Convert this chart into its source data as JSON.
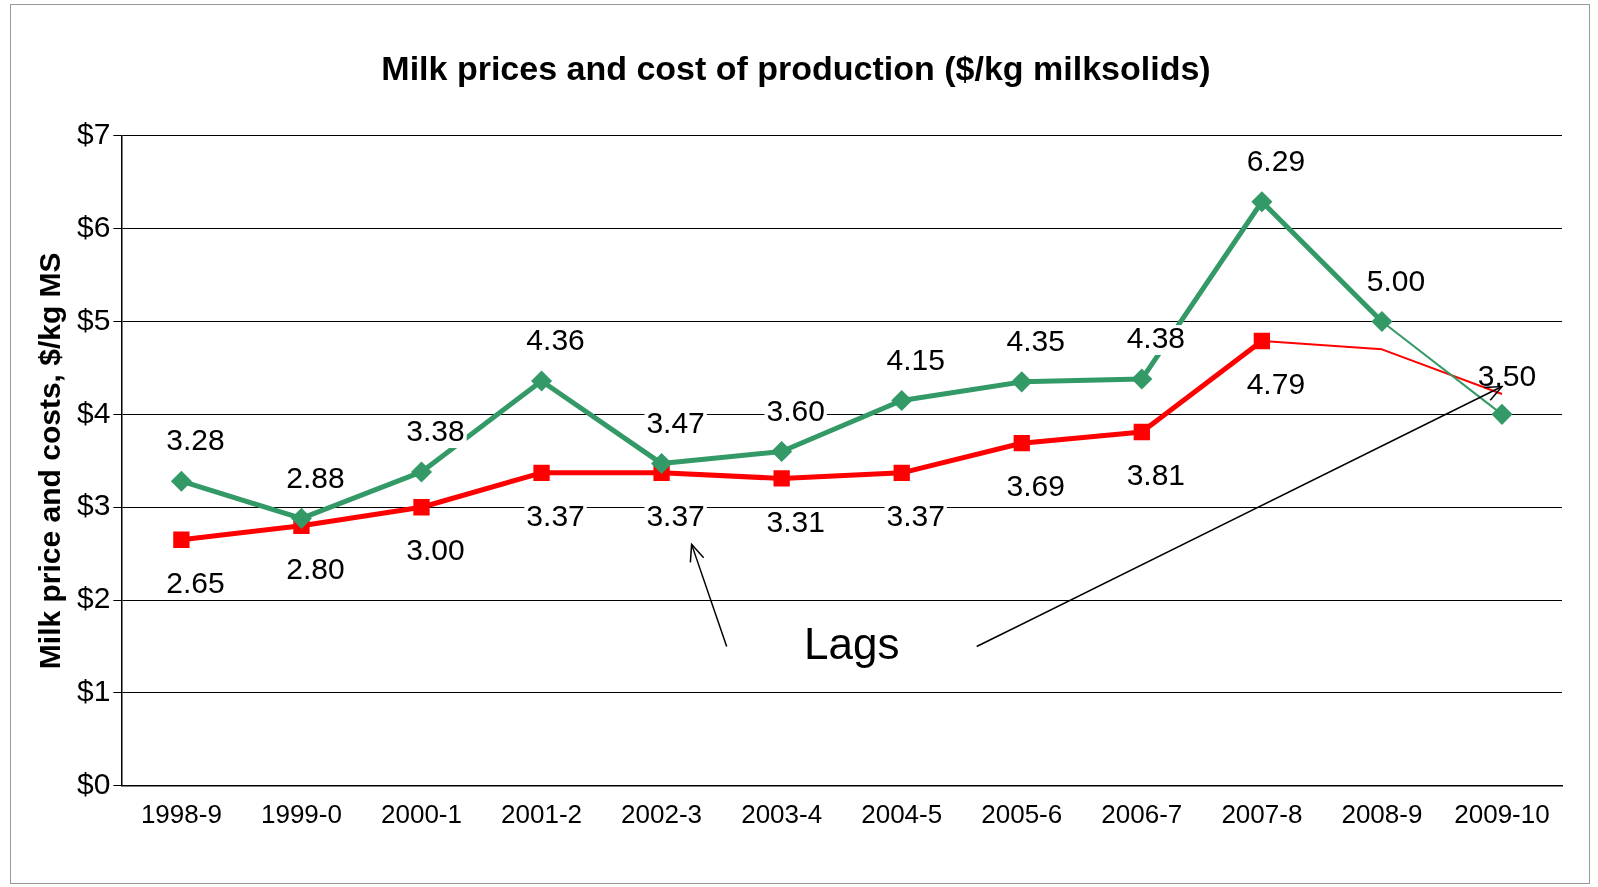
{
  "chart_data": {
    "type": "line",
    "title": "Milk prices and cost of production ($/kg milksolids)",
    "ylabel": "Milk price and costs, $/kg MS",
    "categories": [
      "1998-9",
      "1999-0",
      "2000-1",
      "2001-2",
      "2002-3",
      "2003-4",
      "2004-5",
      "2005-6",
      "2006-7",
      "2007-8",
      "2008-9",
      "2009-10"
    ],
    "series": [
      {
        "color": "#339966",
        "marker": "diamond",
        "values": [
          3.28,
          2.88,
          3.38,
          4.36,
          3.47,
          3.6,
          4.15,
          4.35,
          4.38,
          6.29,
          5.0,
          4.0
        ],
        "value_labels": [
          "3.28",
          "2.88",
          "3.38",
          "4.36",
          "3.47",
          "3.60",
          "4.15",
          "4.35",
          "4.38",
          "6.29",
          "5.00",
          null
        ]
      },
      {
        "color": "#ff0000",
        "marker": "square",
        "values": [
          2.65,
          2.8,
          3.0,
          3.37,
          3.37,
          3.31,
          3.37,
          3.69,
          3.81,
          4.79,
          4.7,
          4.22
        ],
        "value_labels": [
          "2.65",
          "2.80",
          "3.00",
          "3.37",
          "3.37",
          "3.31",
          "3.37",
          "3.69",
          "3.81",
          "4.79",
          null,
          null
        ]
      }
    ],
    "ylim": [
      0,
      7
    ],
    "yticks": [
      {
        "value": 0,
        "label": "$0"
      },
      {
        "value": 1,
        "label": "$1"
      },
      {
        "value": 2,
        "label": "$2"
      },
      {
        "value": 3,
        "label": "$3"
      },
      {
        "value": 4,
        "label": "$4"
      },
      {
        "value": 5,
        "label": "$5"
      },
      {
        "value": 6,
        "label": "$6"
      },
      {
        "value": 7,
        "label": "$7"
      }
    ],
    "grid": "y",
    "legend": false,
    "annotations": [
      "Lags",
      {
        "text": "3.50",
        "x": "2009-10",
        "y": 4.0
      }
    ]
  }
}
